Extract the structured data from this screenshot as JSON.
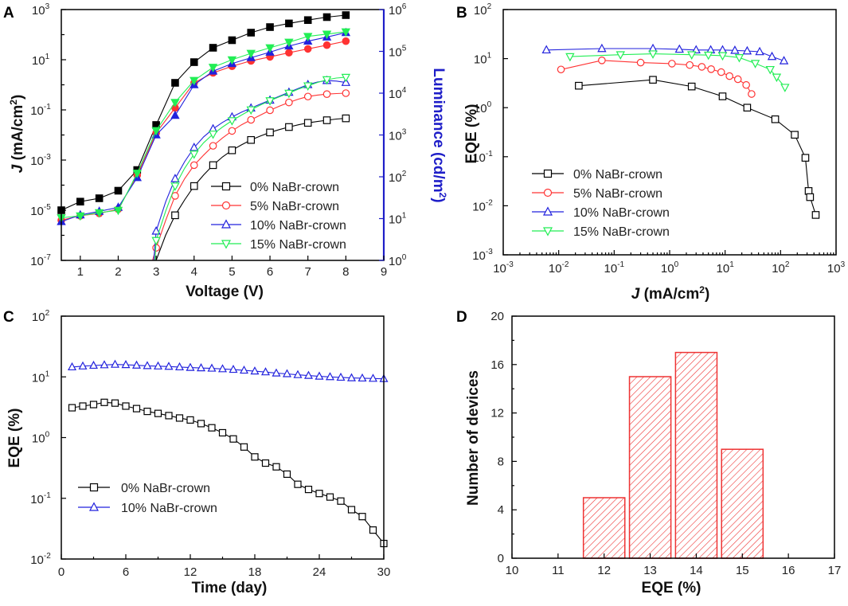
{
  "panels": [
    {
      "letter": "A"
    },
    {
      "letter": "B"
    },
    {
      "letter": "C"
    },
    {
      "letter": "D"
    }
  ],
  "colors": {
    "s0": "#000000",
    "s5": "#ff3333",
    "s10": "#2222dd",
    "s15": "#22ee55",
    "bar_stroke": "#ee3333",
    "lum_axis": "#1e1ec8"
  },
  "chart_data": [
    {
      "panel": "A",
      "type": "line",
      "title": "",
      "xlabel": "Voltage (V)",
      "ylabel": "J (mA/cm2)",
      "ylabel_parts": [
        "J",
        "  (mA/cm",
        "2",
        ")"
      ],
      "y2label": "Luminance (cd/m2)",
      "y2label_parts": [
        "Luminance (cd/m",
        "2",
        ")"
      ],
      "xlim": [
        0.5,
        9
      ],
      "ylim_log": [
        -7,
        3
      ],
      "y2lim_log": [
        0,
        6
      ],
      "x_ticks": [
        "1",
        "2",
        "3",
        "4",
        "5",
        "6",
        "7",
        "8",
        "9"
      ],
      "y_ticks": [
        {
          "base": "10",
          "exp": "-7"
        },
        {
          "base": "10",
          "exp": "-5"
        },
        {
          "base": "10",
          "exp": "-3"
        },
        {
          "base": "10",
          "exp": "-1"
        },
        {
          "base": "10",
          "exp": "1"
        },
        {
          "base": "10",
          "exp": "3"
        }
      ],
      "y2_ticks": [
        {
          "base": "10",
          "exp": "0"
        },
        {
          "base": "10",
          "exp": "1"
        },
        {
          "base": "10",
          "exp": "2"
        },
        {
          "base": "10",
          "exp": "3"
        },
        {
          "base": "10",
          "exp": "4"
        },
        {
          "base": "10",
          "exp": "5"
        },
        {
          "base": "10",
          "exp": "6"
        }
      ],
      "legend": [
        "0% NaBr-crown",
        "5% NaBr-crown",
        "10% NaBr-crown",
        "15% NaBr-crown"
      ],
      "current_density_series": [
        {
          "name": "0% NaBr-crown",
          "x": [
            0.5,
            1,
            1.5,
            2,
            2.5,
            3,
            3.5,
            4,
            4.5,
            5,
            5.5,
            6,
            6.5,
            7,
            7.5,
            8
          ],
          "y": [
            1e-05,
            2.2e-05,
            3e-05,
            6e-05,
            0.0004,
            0.025,
            1.2,
            8.0,
            30,
            60,
            120,
            200,
            280,
            380,
            500,
            600
          ]
        },
        {
          "name": "5% NaBr-crown",
          "x": [
            0.5,
            1,
            1.5,
            2,
            2.5,
            3,
            3.5,
            4,
            4.5,
            5,
            5.5,
            6,
            6.5,
            7,
            7.5,
            8
          ],
          "y": [
            4e-06,
            6e-06,
            7.5e-06,
            1.1e-05,
            0.00025,
            0.012,
            0.12,
            1.2,
            3.0,
            5.5,
            9.0,
            13,
            19,
            27,
            38,
            55
          ]
        },
        {
          "name": "10% NaBr-crown",
          "x": [
            0.5,
            1,
            1.5,
            2,
            2.5,
            3,
            3.5,
            4,
            4.5,
            5,
            5.5,
            6,
            6.5,
            7,
            7.5,
            8
          ],
          "y": [
            3.5e-06,
            6.5e-06,
            9e-06,
            1.3e-05,
            0.0002,
            0.01,
            0.06,
            1.0,
            3.5,
            7.0,
            12,
            20,
            35,
            55,
            80,
            120
          ]
        },
        {
          "name": "15% NaBr-crown",
          "x": [
            0.5,
            1,
            1.5,
            2,
            2.5,
            3,
            3.5,
            4,
            4.5,
            5,
            5.5,
            6,
            6.5,
            7,
            7.5,
            8
          ],
          "y": [
            5e-06,
            6e-06,
            8e-06,
            1e-05,
            0.0003,
            0.015,
            0.2,
            1.5,
            5.0,
            10,
            18,
            30,
            50,
            85,
            105,
            130
          ]
        }
      ],
      "luminance_series": [
        {
          "name": "0% NaBr-crown",
          "x": [
            3,
            3.25,
            3.5,
            3.75,
            4,
            4.25,
            4.5,
            4.75,
            5,
            5.25,
            5.5,
            5.75,
            6,
            6.25,
            6.5,
            6.75,
            7,
            7.25,
            7.5,
            7.75,
            8
          ],
          "y": [
            1,
            4,
            12,
            28,
            60,
            110,
            190,
            300,
            430,
            580,
            760,
            950,
            1150,
            1350,
            1550,
            1750,
            1950,
            2100,
            2250,
            2400,
            2500
          ]
        },
        {
          "name": "5% NaBr-crown",
          "x": [
            3,
            3.25,
            3.5,
            3.75,
            4,
            4.25,
            4.5,
            4.75,
            5,
            5.25,
            5.5,
            5.75,
            6,
            6.25,
            6.5,
            6.75,
            7,
            7.25,
            7.5,
            7.75,
            8
          ],
          "y": [
            2,
            9,
            35,
            90,
            190,
            330,
            550,
            850,
            1250,
            1750,
            2300,
            3000,
            3900,
            4900,
            6000,
            7200,
            8300,
            9000,
            9500,
            9800,
            10000
          ]
        },
        {
          "name": "10% NaBr-crown",
          "x": [
            3,
            3.25,
            3.5,
            3.75,
            4,
            4.25,
            4.5,
            4.75,
            5,
            5.25,
            5.5,
            5.75,
            6,
            6.25,
            6.5,
            6.75,
            7,
            7.25,
            7.5,
            7.75,
            8
          ],
          "y": [
            5,
            25,
            90,
            230,
            500,
            900,
            1400,
            2000,
            2700,
            3500,
            4400,
            5500,
            6800,
            8500,
            10500,
            13000,
            16000,
            18500,
            20000,
            19500,
            18000
          ]
        },
        {
          "name": "15% NaBr-crown",
          "x": [
            3,
            3.25,
            3.5,
            3.75,
            4,
            4.25,
            4.5,
            4.75,
            5,
            5.25,
            5.5,
            5.75,
            6,
            6.25,
            6.5,
            6.75,
            7,
            7.25,
            7.5,
            7.75,
            8
          ],
          "y": [
            3,
            15,
            60,
            160,
            350,
            650,
            1050,
            1550,
            2200,
            3000,
            4000,
            5200,
            6600,
            8200,
            10000,
            12500,
            15000,
            18000,
            21000,
            23000,
            24000
          ]
        }
      ]
    },
    {
      "panel": "B",
      "type": "line",
      "title": "",
      "xlabel": "J (mA/cm2)",
      "xlabel_parts": [
        "J",
        "  (mA/cm",
        "2",
        ")"
      ],
      "ylabel": "EQE (%)",
      "xlim_log": [
        -3,
        3
      ],
      "ylim_log": [
        -3,
        2
      ],
      "x_ticks": [
        {
          "base": "10",
          "exp": "-3"
        },
        {
          "base": "10",
          "exp": "-2"
        },
        {
          "base": "10",
          "exp": "-1"
        },
        {
          "base": "10",
          "exp": "0"
        },
        {
          "base": "10",
          "exp": "1"
        },
        {
          "base": "10",
          "exp": "2"
        },
        {
          "base": "10",
          "exp": "3"
        }
      ],
      "y_ticks": [
        {
          "base": "10",
          "exp": "-3"
        },
        {
          "base": "10",
          "exp": "-2"
        },
        {
          "base": "10",
          "exp": "-1"
        },
        {
          "base": "10",
          "exp": "0"
        },
        {
          "base": "10",
          "exp": "1"
        },
        {
          "base": "10",
          "exp": "2"
        }
      ],
      "legend": [
        "0% NaBr-crown",
        "5% NaBr-crown",
        "10% NaBr-crown",
        "15% NaBr-crown"
      ],
      "series": [
        {
          "name": "0% NaBr-crown",
          "x": [
            0.023,
            0.5,
            2.5,
            9,
            25,
            80,
            180,
            280,
            320,
            340,
            430
          ],
          "y": [
            2.8,
            3.7,
            2.7,
            1.7,
            1.0,
            0.58,
            0.28,
            0.095,
            0.02,
            0.015,
            0.0065
          ]
        },
        {
          "name": "5% NaBr-crown",
          "x": [
            0.011,
            0.06,
            0.3,
            1.1,
            2.3,
            3.8,
            5.6,
            8.5,
            12,
            17,
            24,
            30
          ],
          "y": [
            6.0,
            9.2,
            8.3,
            7.9,
            7.4,
            6.8,
            6.1,
            5.3,
            4.4,
            3.8,
            2.9,
            1.9
          ]
        },
        {
          "name": "10% NaBr-crown",
          "x": [
            0.006,
            0.06,
            0.5,
            1.5,
            3,
            5.5,
            9,
            15,
            25,
            42,
            70,
            115
          ],
          "y": [
            15,
            16,
            16,
            15.5,
            15,
            15,
            15,
            14.7,
            14.3,
            13.8,
            11,
            9
          ]
        },
        {
          "name": "15% NaBr-crown",
          "x": [
            0.016,
            0.13,
            0.5,
            2.5,
            5,
            9,
            18,
            35,
            65,
            85,
            120
          ],
          "y": [
            11,
            12,
            12.5,
            12,
            11.8,
            11.5,
            10.5,
            8,
            6,
            4.2,
            2.6
          ]
        }
      ]
    },
    {
      "panel": "C",
      "type": "line",
      "title": "",
      "xlabel": "Time (day)",
      "ylabel": "EQE (%)",
      "xlim": [
        0,
        30
      ],
      "ylim_log": [
        -2,
        2
      ],
      "x_ticks": [
        "0",
        "6",
        "12",
        "18",
        "24",
        "30"
      ],
      "y_ticks": [
        {
          "base": "10",
          "exp": "-2"
        },
        {
          "base": "10",
          "exp": "-1"
        },
        {
          "base": "10",
          "exp": "0"
        },
        {
          "base": "10",
          "exp": "1"
        },
        {
          "base": "10",
          "exp": "2"
        }
      ],
      "legend": [
        "0% NaBr-crown",
        "10% NaBr-crown"
      ],
      "series": [
        {
          "name": "0% NaBr-crown",
          "x": [
            1,
            2,
            3,
            4,
            5,
            6,
            7,
            8,
            9,
            10,
            11,
            12,
            13,
            14,
            15,
            16,
            17,
            18,
            19,
            20,
            21,
            22,
            23,
            24,
            25,
            26,
            27,
            28,
            29,
            30
          ],
          "y": [
            3.1,
            3.3,
            3.5,
            3.8,
            3.7,
            3.3,
            3.0,
            2.7,
            2.5,
            2.3,
            2.1,
            1.95,
            1.7,
            1.45,
            1.2,
            0.95,
            0.7,
            0.48,
            0.38,
            0.33,
            0.25,
            0.17,
            0.14,
            0.12,
            0.105,
            0.09,
            0.065,
            0.05,
            0.03,
            0.018
          ]
        },
        {
          "name": "10% NaBr-crown",
          "x": [
            1,
            2,
            3,
            4,
            5,
            6,
            7,
            8,
            9,
            10,
            11,
            12,
            13,
            14,
            15,
            16,
            17,
            18,
            19,
            20,
            21,
            22,
            23,
            24,
            25,
            26,
            27,
            28,
            29,
            30
          ],
          "y": [
            14.5,
            15,
            15.4,
            15.7,
            16,
            15.8,
            15.5,
            15.2,
            15,
            14.8,
            14.5,
            14.2,
            14,
            13.8,
            13.5,
            13.2,
            12.8,
            12.4,
            12,
            11.5,
            11.2,
            10.8,
            10.5,
            10.2,
            10,
            9.8,
            9.6,
            9.5,
            9.4,
            9.3
          ]
        }
      ]
    },
    {
      "panel": "D",
      "type": "bar",
      "title": "",
      "xlabel": "EQE (%)",
      "ylabel": "Number of devices",
      "xlim": [
        10,
        17
      ],
      "ylim": [
        0,
        20
      ],
      "x_ticks": [
        "10",
        "11",
        "12",
        "13",
        "14",
        "15",
        "16",
        "17"
      ],
      "y_ticks": [
        "0",
        "4",
        "8",
        "12",
        "16",
        "20"
      ],
      "categories": [
        "12",
        "13",
        "14",
        "15"
      ],
      "values": [
        5,
        15,
        17,
        9
      ]
    }
  ]
}
